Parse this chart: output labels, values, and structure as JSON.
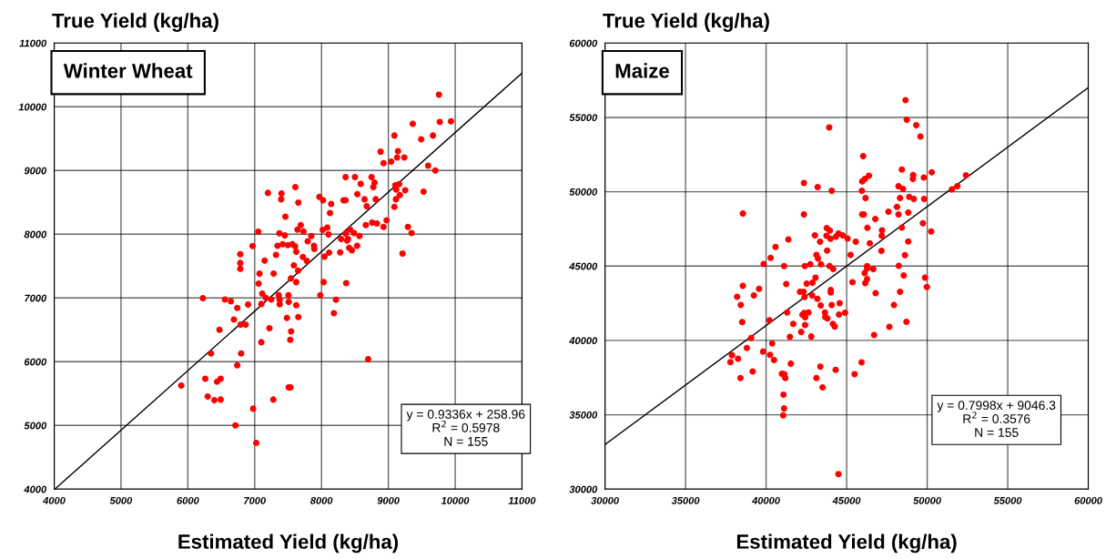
{
  "chart_data": [
    {
      "type": "scatter",
      "title": "Winter Wheat",
      "xlabel": "Estimated Yield (kg/ha)",
      "ylabel": "True Yield (kg/ha)",
      "xlim": [
        4000,
        11000
      ],
      "ylim": [
        4000,
        11000
      ],
      "xticks": [
        4000,
        5000,
        6000,
        7000,
        8000,
        9000,
        10000,
        11000
      ],
      "yticks": [
        4000,
        5000,
        6000,
        7000,
        8000,
        9000,
        10000,
        11000
      ],
      "grid": true,
      "annotations": [
        "y = 0.9336x + 258.96",
        "R$^{2}$ = 0.5978",
        "N = 155"
      ],
      "series": [
        {
          "marker": "circle",
          "color": "#ff0000",
          "x": [
            9757,
            9365,
            9770,
            9937,
            9090,
            9491,
            9667,
            8883,
            8928,
            9041,
            9144,
            9131,
            9239,
            9595,
            9703,
            8360,
            8500,
            8586,
            8748,
            8793,
            8775,
            9104,
            9162,
            9117,
            9252,
            9527,
            9171,
            9113,
            9090,
            8536,
            8644,
            8811,
            8676,
            7198,
            7401,
            7396,
            7608,
            7653,
            7968,
            8023,
            8144,
            8126,
            8329,
            8360,
            7459,
            7689,
            7640,
            7730,
            7847,
            7054,
            7369,
            7450,
            8018,
            8086,
            8104,
            8293,
            8360,
            8428,
            8486,
            8568,
            8383,
            8396,
            8414,
            8455,
            8532,
            8662,
            8757,
            8829,
            8973,
            8928,
            9293,
            9347,
            9212,
            7793,
            7887,
            7892,
            7495,
            7342,
            7419,
            7563,
            7604,
            7622,
            7319,
            6968,
            6784,
            6784,
            6784,
            7149,
            7721,
            7779,
            7586,
            7649,
            8045,
            8113,
            8279,
            7072,
            7284,
            7541,
            7622,
            7059,
            8032,
            8369,
            7113,
            7360,
            7505,
            6225,
            6554,
            6644,
            6901,
            6739,
            7099,
            7167,
            7248,
            7374,
            7374,
            7509,
            7622,
            7982,
            8216,
            8185,
            7482,
            7653,
            6689,
            6788,
            6865,
            6473,
            7221,
            7545,
            7532,
            7099,
            6347,
            6797,
            6739,
            8698,
            5901,
            6261,
            6437,
            6491,
            6297,
            6396,
            6491,
            7509,
            7536,
            7279,
            6977,
            6712,
            7023
          ],
          "values": [
            10190,
            9733,
            9762,
            9771,
            9548,
            9490,
            9548,
            9295,
            9114,
            9138,
            9305,
            9205,
            9205,
            9076,
            9000,
            8895,
            8895,
            8790,
            8895,
            8810,
            8738,
            8767,
            8786,
            8700,
            8690,
            8667,
            8614,
            8548,
            8429,
            8629,
            8548,
            8548,
            8438,
            8648,
            8638,
            8548,
            8738,
            8495,
            8586,
            8533,
            8476,
            8333,
            8533,
            8533,
            8276,
            8143,
            8071,
            8043,
            7971,
            8038,
            8014,
            7981,
            8067,
            8105,
            7995,
            7924,
            8010,
            8071,
            8019,
            7971,
            7900,
            7924,
            7786,
            7748,
            7819,
            8143,
            8181,
            8167,
            8219,
            8114,
            8114,
            8019,
            7695,
            7890,
            7819,
            7767,
            7829,
            7819,
            7843,
            7843,
            7810,
            7724,
            7676,
            7814,
            7686,
            7548,
            7457,
            7586,
            7643,
            7581,
            7510,
            7429,
            7648,
            7710,
            7714,
            7381,
            7381,
            7305,
            7248,
            7224,
            7248,
            7233,
            7067,
            7043,
            7043,
            6995,
            6976,
            6948,
            6895,
            6843,
            6905,
            7000,
            6976,
            6971,
            6900,
            6938,
            6886,
            7043,
            6971,
            6762,
            6686,
            6700,
            6662,
            6581,
            6581,
            6500,
            6524,
            6476,
            6343,
            6305,
            6129,
            6129,
            5943,
            6038,
            5624,
            5733,
            5686,
            5733,
            5452,
            5395,
            5405,
            5595,
            5595,
            5405,
            5262,
            5000,
            4724
          ]
        },
        {
          "type": "line",
          "marker": "none",
          "color": "#000000",
          "line_style": "solid",
          "x": [
            4010,
            11000
          ],
          "values": [
            4000,
            10530
          ]
        }
      ]
    },
    {
      "type": "scatter",
      "title": "Maize",
      "xlabel": "Estimated Yield (kg/ha)",
      "ylabel": "True Yield (kg/ha)",
      "xlim": [
        30000,
        60000
      ],
      "ylim": [
        30000,
        60000
      ],
      "xticks": [
        30000,
        35000,
        40000,
        45000,
        50000,
        55000,
        60000
      ],
      "yticks": [
        30000,
        35000,
        40000,
        45000,
        50000,
        55000,
        60000
      ],
      "grid": true,
      "annotations": [
        "y = 0.7998x + 9046.3",
        "R$^{2}$ = 0.3576",
        "N = 155"
      ],
      "series": [
        {
          "marker": "circle",
          "color": "#ff0000",
          "x": [
            48655,
            48731,
            49318,
            49583,
            43920,
            46023,
            42348,
            43201,
            44072,
            45966,
            46136,
            46383,
            45947,
            46174,
            48428,
            49129,
            49110,
            49792,
            50284,
            48220,
            48504,
            48314,
            48883,
            49167,
            49811,
            51534,
            51875,
            52405,
            38561,
            42348,
            45966,
            46061,
            47595,
            48125,
            48220,
            48826,
            46780,
            46288,
            47197,
            47178,
            48428,
            49735,
            50246,
            48826,
            48617,
            47159,
            46439,
            43769,
            43958,
            43030,
            43352,
            43750,
            43996,
            44337,
            44489,
            44754,
            45057,
            45568,
            41383,
            40587,
            43788,
            43125,
            43220,
            40284,
            39848,
            41117,
            42405,
            42746,
            43409,
            43939,
            44167,
            45246,
            46269,
            46269,
            46648,
            46117,
            46269,
            46155,
            45360,
            48239,
            48542,
            49867,
            49981,
            48314,
            46799,
            47936,
            43068,
            42879,
            42519,
            41250,
            38561,
            39564,
            39242,
            38201,
            38428,
            42102,
            42330,
            42386,
            42860,
            43182,
            43390,
            44015,
            44015,
            44072,
            44564,
            38515,
            41307,
            40208,
            41686,
            42254,
            42367,
            42633,
            42424,
            42424,
            43655,
            43674,
            43807,
            44527,
            44905,
            44148,
            44261,
            42178,
            42803,
            41477,
            46705,
            47652,
            48712,
            39072,
            38807,
            40379,
            39811,
            37879,
            37784,
            38258,
            39167,
            38409,
            40246,
            40492,
            41534,
            40985,
            41136,
            41193,
            43371,
            44318,
            43125,
            43504,
            45492,
            45928,
            41080,
            41117,
            41061,
            44489
          ],
          "values": [
            56163,
            54837,
            54469,
            53714,
            54327,
            52388,
            50592,
            50306,
            50061,
            50694,
            50857,
            51082,
            50061,
            49571,
            51490,
            51122,
            50857,
            50959,
            51306,
            50367,
            50184,
            49571,
            49653,
            49510,
            49510,
            50163,
            50367,
            51102,
            48531,
            48469,
            48469,
            48469,
            48653,
            48980,
            48469,
            48592,
            48163,
            47571,
            47408,
            47041,
            47592,
            47878,
            47327,
            46653,
            45735,
            46020,
            46531,
            47551,
            47388,
            47061,
            46633,
            47041,
            46837,
            46980,
            47184,
            47061,
            46857,
            46633,
            46796,
            46286,
            46041,
            45755,
            45510,
            45551,
            45143,
            45000,
            45000,
            45122,
            45122,
            45000,
            44796,
            45755,
            45000,
            44837,
            44796,
            44531,
            44122,
            43857,
            43918,
            45020,
            44367,
            44224,
            43592,
            43265,
            43184,
            42388,
            44224,
            43878,
            43816,
            43796,
            43673,
            43469,
            43020,
            42939,
            42388,
            43265,
            43265,
            42918,
            43020,
            42796,
            42347,
            43388,
            43224,
            42388,
            42510,
            41235,
            41883,
            41356,
            41113,
            41721,
            41842,
            41883,
            41559,
            41032,
            41883,
            41579,
            41478,
            41741,
            41862,
            41113,
            40931,
            40567,
            40263,
            40243,
            40364,
            40911,
            41255,
            40162,
            39494,
            39798,
            39251,
            39008,
            38543,
            38765,
            37915,
            37470,
            39028,
            38684,
            38441,
            37753,
            37733,
            37470,
            38239,
            38016,
            37470,
            36842,
            37733,
            38522,
            36356,
            35425,
            34960,
            31012
          ]
        },
        {
          "type": "line",
          "marker": "none",
          "color": "#000000",
          "line_style": "solid",
          "x": [
            30000,
            60000
          ],
          "values": [
            33000,
            57000
          ]
        }
      ]
    }
  ]
}
